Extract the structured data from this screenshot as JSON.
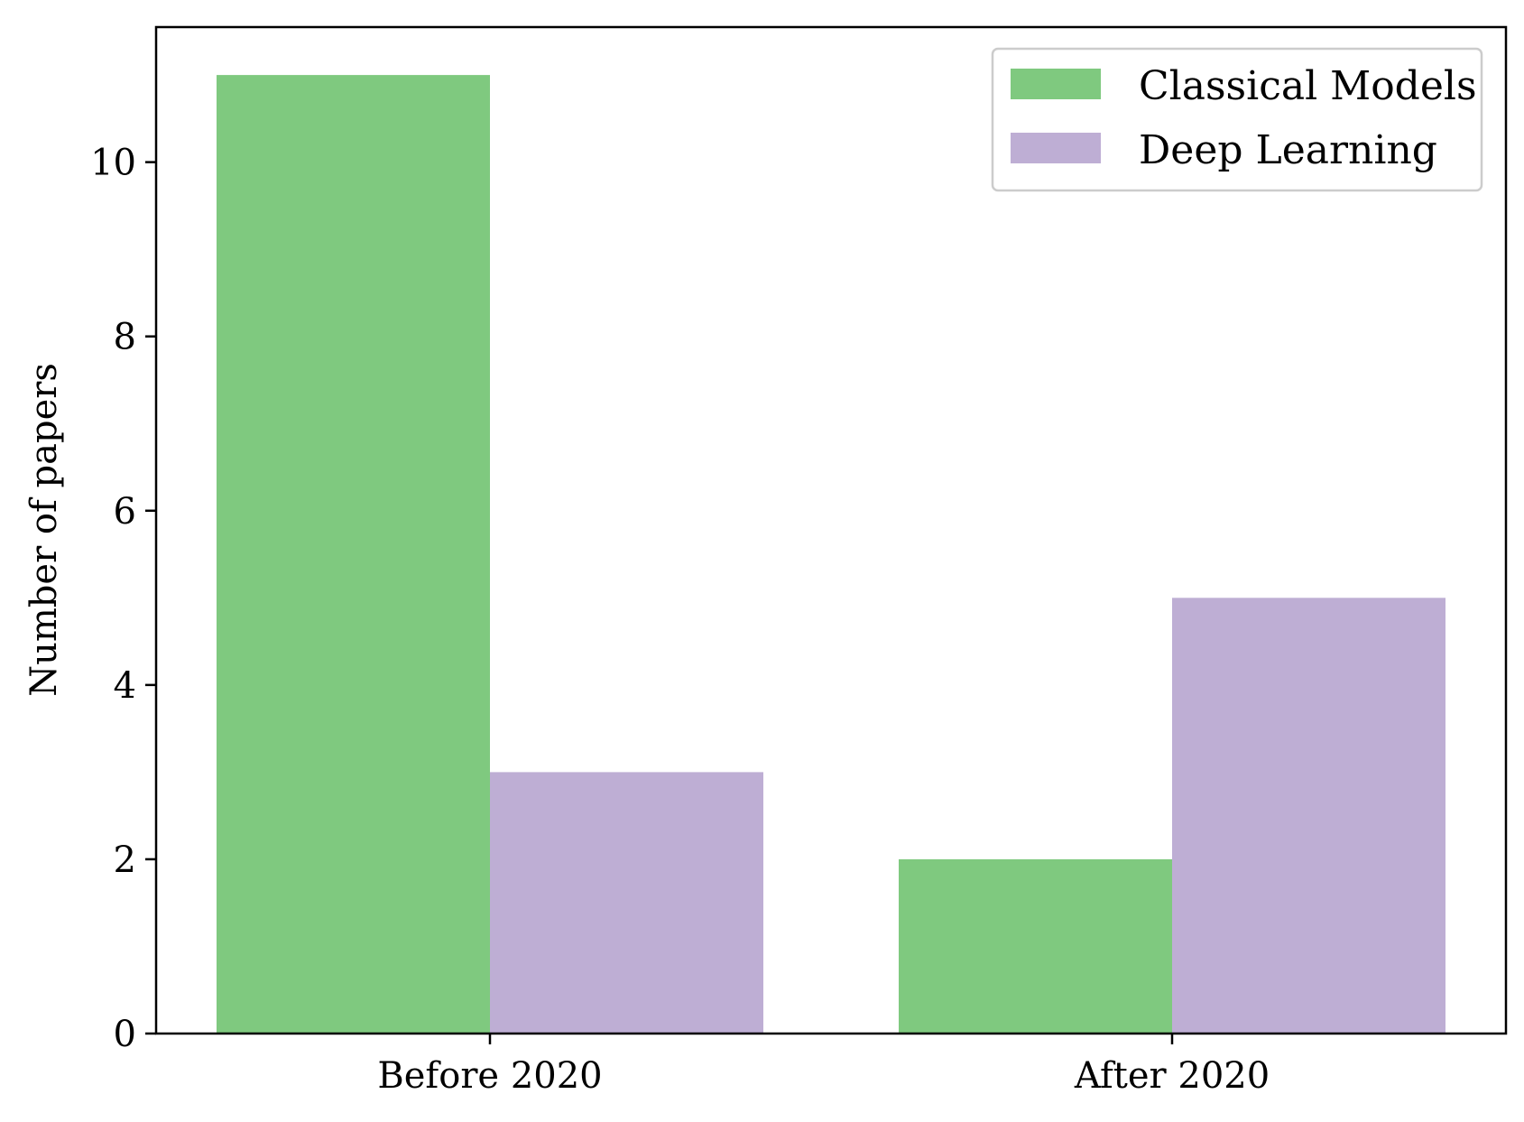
{
  "chart_data": {
    "type": "bar",
    "title": "",
    "xlabel": "",
    "ylabel": "Number of papers",
    "categories": [
      "Before 2020",
      "After 2020"
    ],
    "series": [
      {
        "name": "Classical Models",
        "values": [
          11,
          2
        ],
        "color": "#7fc97f"
      },
      {
        "name": "Deep Learning",
        "values": [
          3,
          5
        ],
        "color": "#beaed4"
      }
    ],
    "ylim": [
      0,
      11.55
    ],
    "yticks": [
      0,
      2,
      4,
      6,
      8,
      10
    ],
    "grid": false,
    "legend_position": "top-right"
  }
}
